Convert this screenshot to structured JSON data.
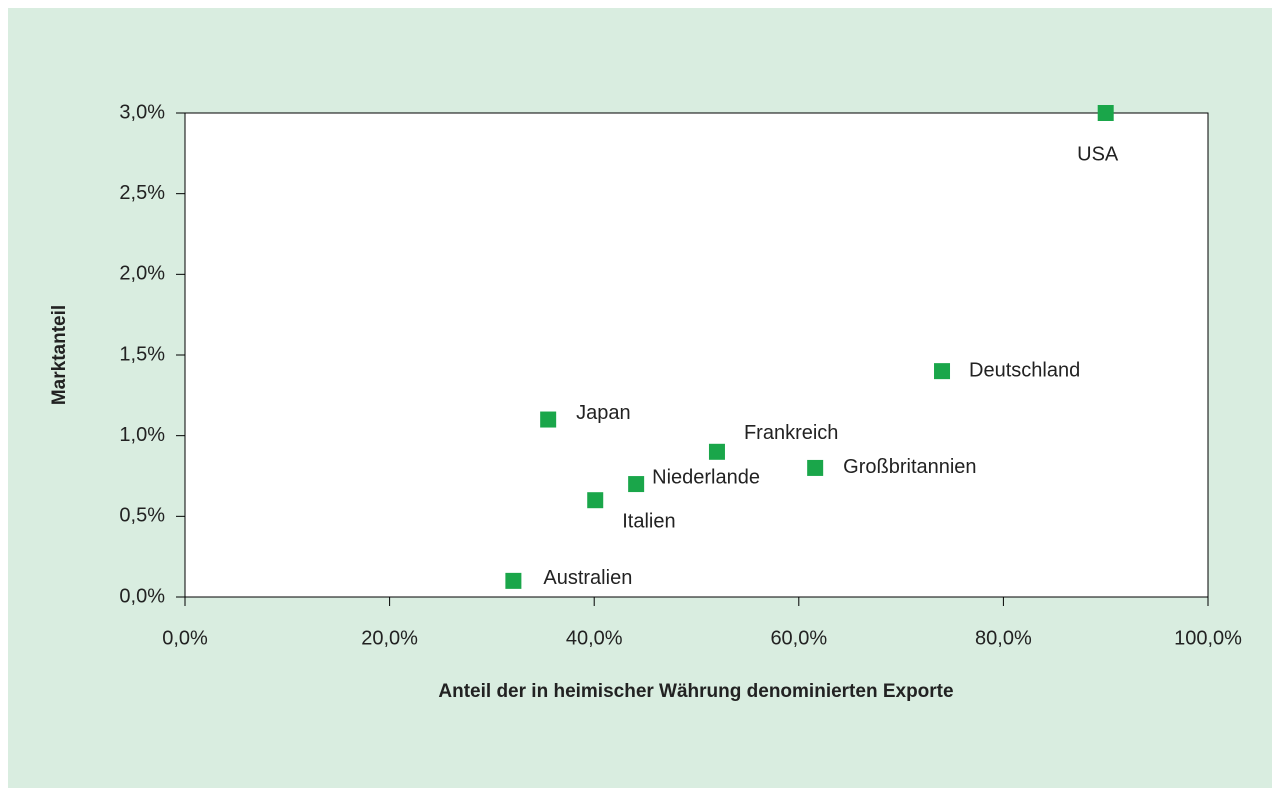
{
  "chart_data": {
    "type": "scatter",
    "xlabel": "Anteil der in heimischer Währung denominierten Exporte",
    "ylabel": "Marktanteil",
    "labels": [
      "USA",
      "Deutschland",
      "Japan",
      "Frankreich",
      "Großbritannien",
      "Niederlande",
      "Italien",
      "Australien"
    ],
    "x": [
      90,
      74,
      35.5,
      52,
      61.6,
      44.1,
      40.1,
      32.1
    ],
    "values": [
      3.0,
      1.4,
      1.1,
      0.9,
      0.8,
      0.7,
      0.6,
      0.1
    ],
    "color": "#1aa64a",
    "xlim": [
      0,
      100
    ],
    "xticks": [
      {
        "value": 0,
        "label": "0,0%"
      },
      {
        "value": 20,
        "label": "20,0%"
      },
      {
        "value": 40,
        "label": "40,0%"
      },
      {
        "value": 60,
        "label": "60,0%"
      },
      {
        "value": 80,
        "label": "80,0%"
      },
      {
        "value": 100,
        "label": "100,0%"
      }
    ],
    "ylim": [
      0,
      3
    ],
    "yticks": [
      {
        "value": 0,
        "label": "0,0%"
      },
      {
        "value": 0.5,
        "label": "0,5%"
      },
      {
        "value": 1,
        "label": "1,0%"
      },
      {
        "value": 1.5,
        "label": "1,5%"
      },
      {
        "value": 2,
        "label": "2,0%"
      },
      {
        "value": 2.5,
        "label": "2,5%"
      },
      {
        "value": 3,
        "label": "3,0%"
      }
    ]
  }
}
